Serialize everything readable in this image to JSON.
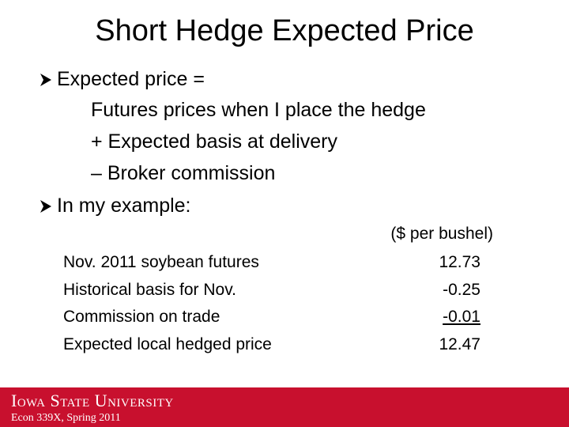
{
  "header": {
    "title": "Short Hedge Expected Price"
  },
  "bullets": [
    {
      "text": "Expected price =",
      "lines": [
        "Futures prices when I place the hedge",
        "+ Expected basis at delivery",
        "– Broker commission"
      ]
    },
    {
      "text": "In my example:"
    }
  ],
  "table": {
    "unit": "($ per bushel)",
    "rows": [
      [
        "Nov. 2011 soybean futures",
        "12.73"
      ],
      [
        "Historical basis for Nov.",
        "-0.25"
      ],
      [
        "Commission on trade",
        "-0.01"
      ],
      [
        "Expected local hedged price",
        "12.47"
      ]
    ]
  },
  "footer": {
    "university": "Iowa State University",
    "course": "Econ 339X, Spring 2011"
  }
}
